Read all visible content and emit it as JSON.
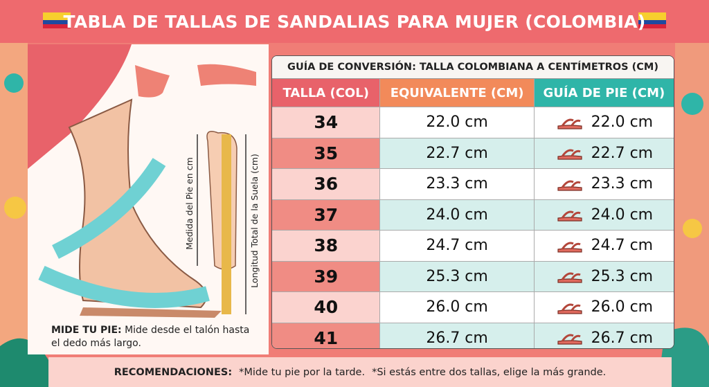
{
  "header": {
    "title": "TABLA DE TALLAS DE SANDALIAS PARA MUJER (COLOMBIA)"
  },
  "illustration": {
    "foot_label": "Medida del Pie en cm",
    "sole_label": "Longitud Total de la Suela (cm)",
    "note_label": "MIDE TU PIE:",
    "note_text": "Mide desde el talón hasta el dedo más largo."
  },
  "table": {
    "caption": "GUÍA DE CONVERSIÓN: TALLA COLOMBIANA A CENTÍMETROS (CM)",
    "headers": [
      "TALLA (COL)",
      "EQUIVALENTE (CM)",
      "GUÍA DE PIE (CM)"
    ],
    "rows": [
      [
        "34",
        "22.0 cm",
        "22.0 cm"
      ],
      [
        "35",
        "22.7 cm",
        "22.7 cm"
      ],
      [
        "36",
        "23.3 cm",
        "23.3 cm"
      ],
      [
        "37",
        "24.0 cm",
        "24.0 cm"
      ],
      [
        "38",
        "24.7 cm",
        "24.7 cm"
      ],
      [
        "39",
        "25.3 cm",
        "25.3 cm"
      ],
      [
        "40",
        "26.0 cm",
        "26.0 cm"
      ],
      [
        "41",
        "26.7 cm",
        "26.7 cm"
      ]
    ]
  },
  "footer": {
    "label": "RECOMENDACIONES:",
    "items": [
      "*Mide tu pie por la tarde.",
      "*Si estás entre dos tallas, elige la más grande."
    ]
  }
}
